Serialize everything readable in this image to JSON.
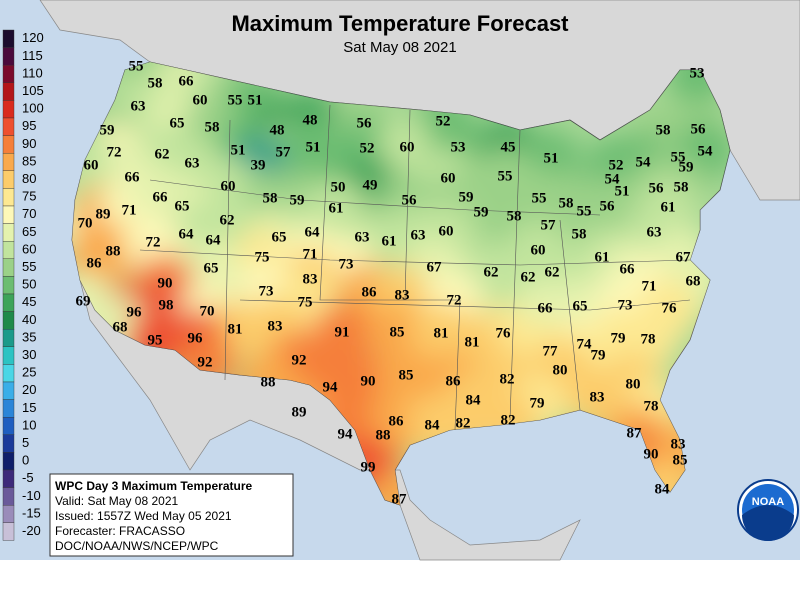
{
  "title": "Maximum Temperature Forecast",
  "subtitle": "Sat May 08 2021",
  "legend": {
    "levels": [
      120,
      115,
      110,
      105,
      100,
      95,
      90,
      85,
      80,
      75,
      70,
      65,
      60,
      55,
      50,
      45,
      40,
      35,
      30,
      25,
      20,
      15,
      10,
      5,
      0,
      -5,
      -10,
      -15,
      -20
    ],
    "colors": [
      "#1c0c2e",
      "#4a0a3c",
      "#7a0a2c",
      "#b3161a",
      "#d92b1e",
      "#ee5030",
      "#f57f3a",
      "#f9a94c",
      "#fccc6a",
      "#fde891",
      "#fdf8b8",
      "#e4f2ae",
      "#c1e49d",
      "#9bd188",
      "#6cbd72",
      "#3da45a",
      "#1f8a4a",
      "#1b9a8a",
      "#2cc3c3",
      "#4ad6e6",
      "#3aaee8",
      "#2a85d8",
      "#1e5ec0",
      "#1a3a9a",
      "#0e1e6a",
      "#3d2a7a",
      "#6a5a9a",
      "#9a8cba",
      "#c8c0d8"
    ]
  },
  "labels": [
    55,
    58,
    66,
    60,
    55,
    51,
    63,
    59,
    65,
    58,
    48,
    48,
    56,
    52,
    72,
    62,
    51,
    57,
    51,
    52,
    60,
    53,
    45,
    51,
    58,
    56,
    53,
    60,
    63,
    39,
    55,
    54,
    59,
    54,
    66,
    60,
    50,
    49,
    60,
    55,
    52,
    54,
    51,
    56,
    58,
    70,
    89,
    71,
    66,
    65,
    58,
    59,
    61,
    56,
    59,
    59,
    58,
    55,
    58,
    55,
    56,
    61,
    62,
    57,
    58,
    64,
    64,
    65,
    64,
    63,
    61,
    63,
    60,
    88,
    72,
    60,
    63,
    67,
    86,
    75,
    71,
    73,
    67,
    62,
    62,
    62,
    61,
    66,
    65,
    83,
    90,
    73,
    86,
    83,
    72,
    71,
    68,
    69,
    96,
    98,
    70,
    75,
    66,
    65,
    73,
    76,
    68,
    81,
    83,
    91,
    85,
    81,
    76,
    95,
    96,
    81,
    79,
    78,
    74,
    77,
    79,
    92,
    92,
    90,
    85,
    80,
    88,
    94,
    86,
    82,
    80,
    84,
    83,
    79,
    78,
    89,
    82,
    82,
    86,
    84,
    88,
    94,
    87,
    83,
    90,
    85,
    99,
    87,
    84
  ],
  "info_box": {
    "heading": "WPC Day 3 Maximum Temperature",
    "lines": [
      "Valid: Sat May 08 2021",
      "Issued: 1557Z Wed May 05 2021",
      "Forecaster: FRACASSO",
      "DOC/NOAA/NWS/NCEP/WPC"
    ]
  },
  "logo": "NOAA"
}
